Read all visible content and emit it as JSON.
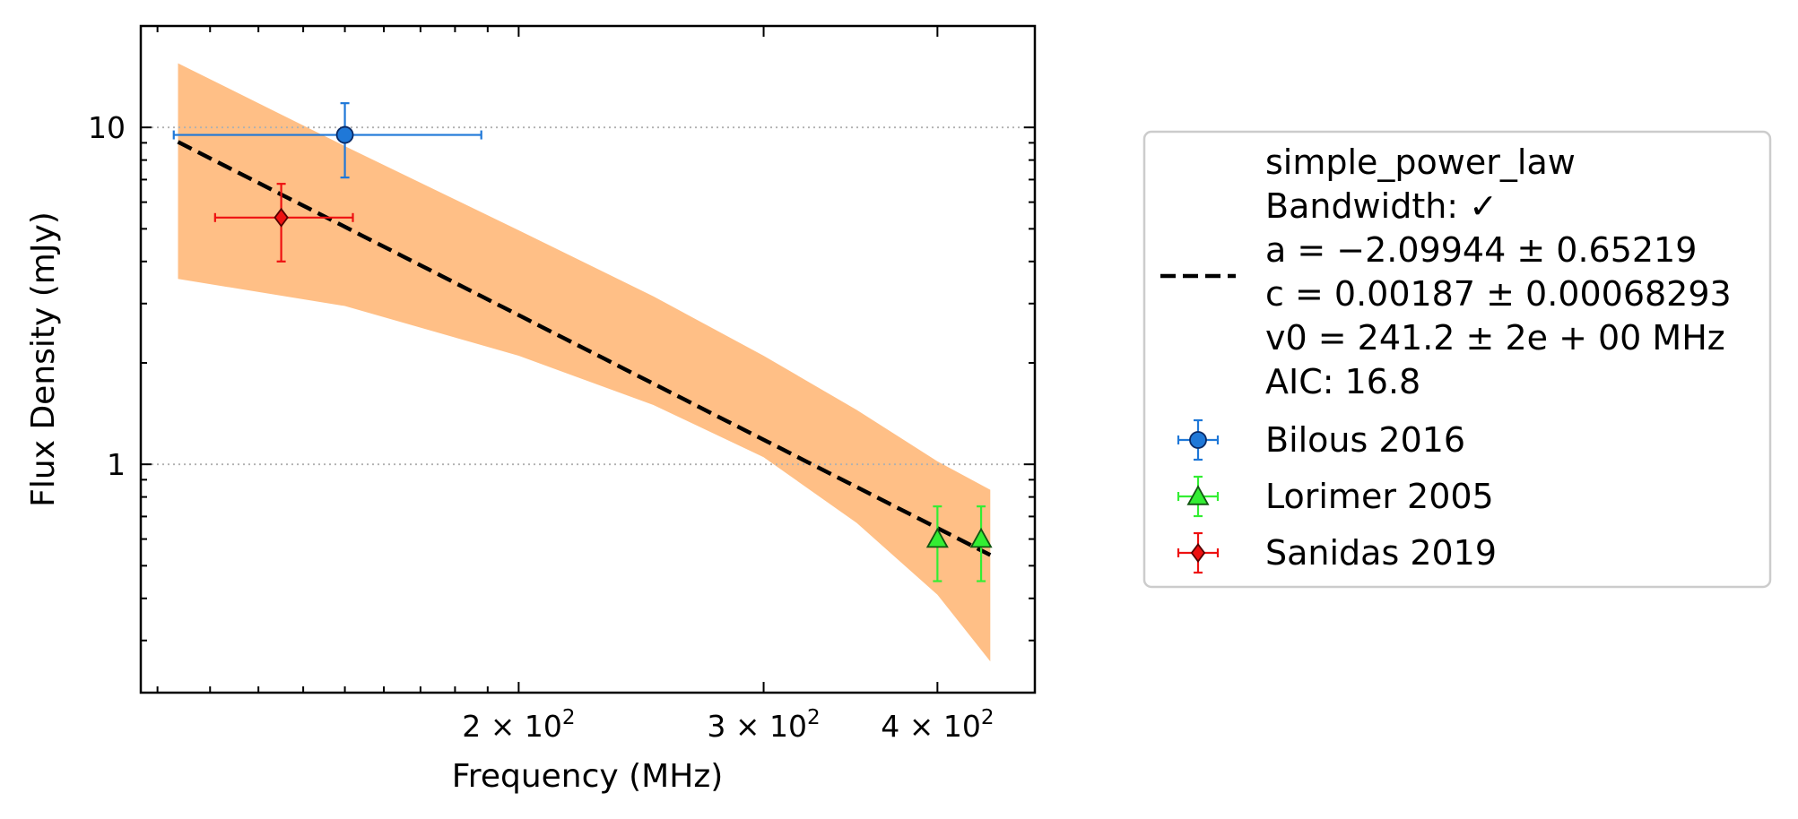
{
  "chart_data": {
    "type": "scatter",
    "xlabel": "Frequency (MHz)",
    "ylabel": "Flux Density (mJy)",
    "xscale": "log",
    "yscale": "log",
    "xlim": [
      107,
      470
    ],
    "ylim": [
      0.21,
      20
    ],
    "x_ticks": [
      {
        "value": 200,
        "mantissa": "2",
        "base": "10",
        "exp": "2"
      },
      {
        "value": 300,
        "mantissa": "3",
        "base": "10",
        "exp": "2"
      },
      {
        "value": 400,
        "mantissa": "4",
        "base": "10",
        "exp": "2"
      }
    ],
    "y_ticks": [
      {
        "value": 1,
        "label": "1"
      },
      {
        "value": 10,
        "label": "10"
      }
    ],
    "y_grid": [
      1,
      10
    ],
    "fit": {
      "model": "simple_power_law",
      "v0": 241.2,
      "a": -2.09944,
      "c": 0.00187,
      "x_range": [
        113.8,
        436.6
      ],
      "line_color": "#000000",
      "band_color": "#ffbf86",
      "band": {
        "x": [
          113.8,
          150,
          200,
          250,
          300,
          350,
          400,
          436.6
        ],
        "upper": [
          15.5,
          8.8,
          4.95,
          3.15,
          2.1,
          1.45,
          1.02,
          0.84
        ],
        "lower": [
          3.55,
          2.95,
          2.1,
          1.5,
          1.05,
          0.67,
          0.41,
          0.26
        ]
      }
    },
    "series": [
      {
        "name": "Bilous 2016",
        "marker": "circle",
        "color": "#1f78d8",
        "edge": "#0a2a66",
        "points": [
          {
            "x": 150,
            "y": 9.5,
            "xerr": [
              37,
              38
            ],
            "yerr": [
              2.4,
              2.3
            ]
          }
        ]
      },
      {
        "name": "Lorimer 2005",
        "marker": "triangle",
        "color": "#33ee33",
        "edge": "#115511",
        "points": [
          {
            "x": 400,
            "y": 0.6,
            "xerr": [
              0,
              0
            ],
            "yerr": [
              0.15,
              0.15
            ]
          },
          {
            "x": 430,
            "y": 0.6,
            "xerr": [
              0,
              0
            ],
            "yerr": [
              0.15,
              0.15
            ]
          }
        ]
      },
      {
        "name": "Sanidas 2019",
        "marker": "diamond",
        "color": "#ee1111",
        "edge": "#550000",
        "points": [
          {
            "x": 135,
            "y": 5.4,
            "xerr": [
              14,
              17
            ],
            "yerr": [
              1.4,
              1.4
            ]
          }
        ]
      }
    ],
    "legend": {
      "placement": "right, outside plot",
      "fit_lines": [
        "simple_power_law",
        "Bandwidth: ✓",
        "a = −2.09944 ± 0.65219",
        "c = 0.00187 ± 0.00068293",
        "v0 = 241.2 ± 2e + 00 MHz",
        "AIC: 16.8"
      ]
    }
  }
}
